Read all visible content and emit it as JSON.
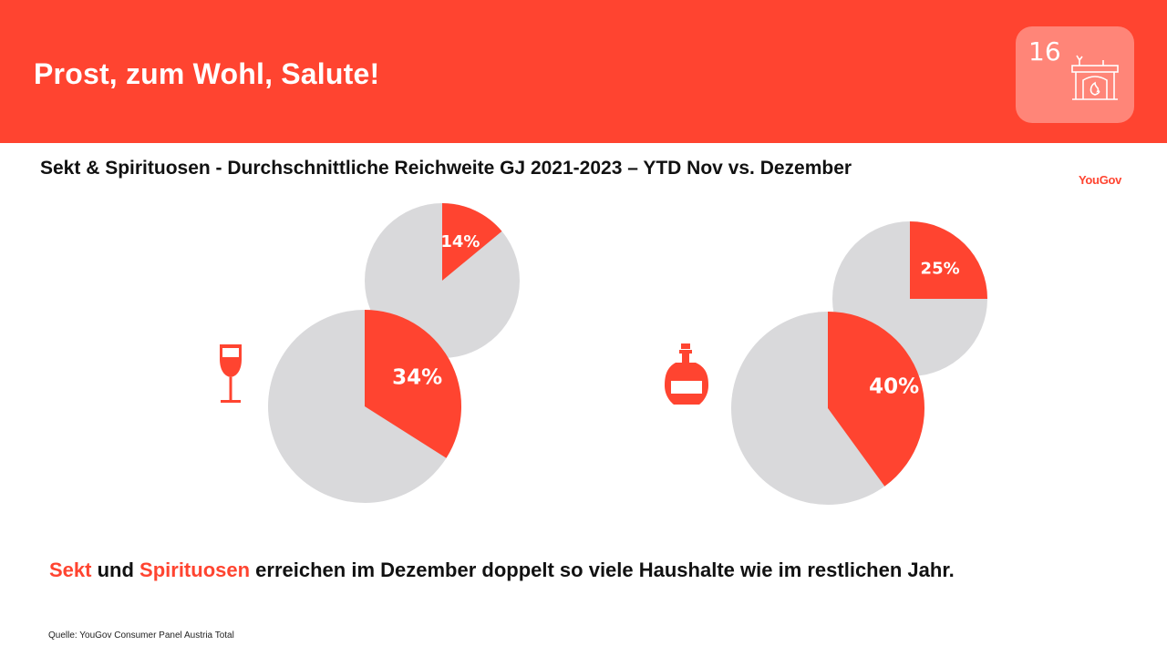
{
  "header": {
    "title": "Prost, zum Wohl, Salute!",
    "page_number": "16",
    "badge_icon": "fireplace-icon",
    "color": "#ff4430"
  },
  "subtitle": "Sekt & Spirituosen - Durchschnittliche Reichweite GJ 2021-2023 – YTD Nov vs. Dezember",
  "logo": "YouGov",
  "chart_data": {
    "type": "pie",
    "colors": {
      "highlight": "#ff4430",
      "rest": "#d9d9db"
    },
    "groups": [
      {
        "name": "Sekt",
        "icon": "wine-glass-icon",
        "pies": [
          {
            "value": 14,
            "label": "14%"
          },
          {
            "value": 34,
            "label": "34%"
          }
        ]
      },
      {
        "name": "Spirituosen",
        "icon": "liquor-bottle-icon",
        "pies": [
          {
            "value": 25,
            "label": "25%"
          },
          {
            "value": 40,
            "label": "40%"
          }
        ]
      }
    ]
  },
  "takeaway": {
    "part1": "Sekt",
    "part2": " und ",
    "part3": "Spirituosen",
    "part4": " erreichen im Dezember doppelt so viele Haushalte wie im restlichen Jahr."
  },
  "source": "Quelle: YouGov Consumer Panel Austria Total"
}
